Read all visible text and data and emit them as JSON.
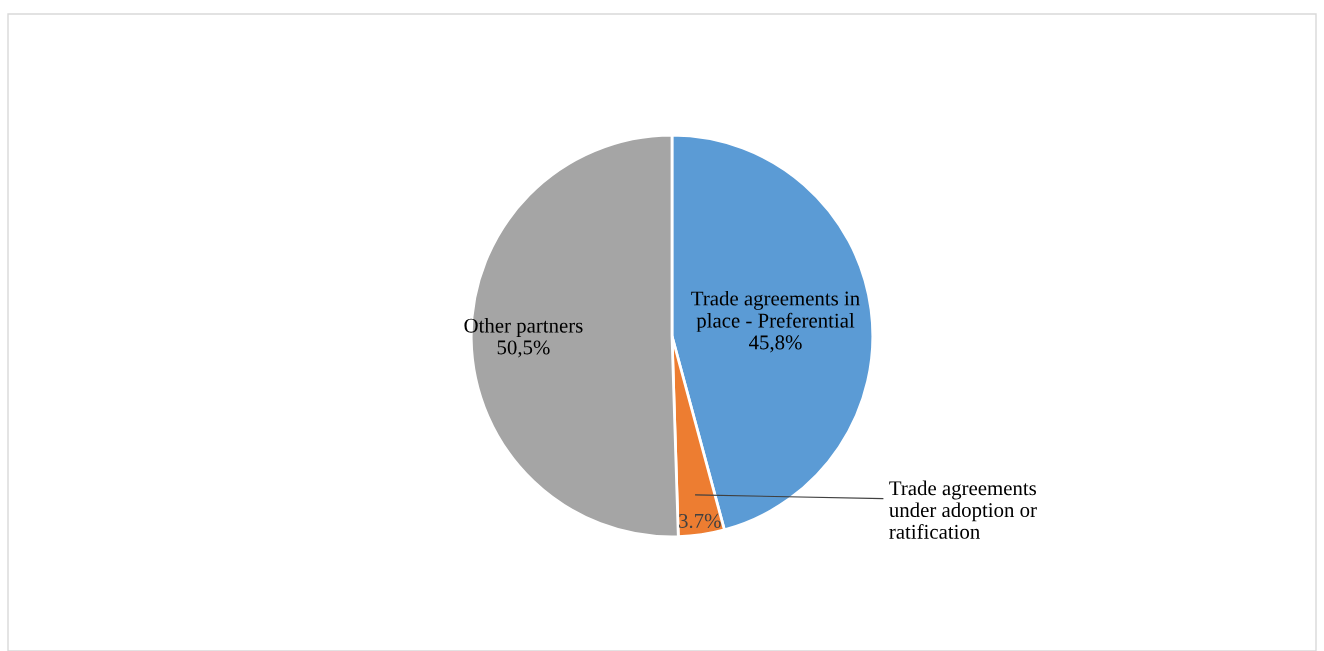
{
  "chart_data": {
    "type": "pie",
    "categories": [
      "Trade agreements in\nplace - Preferential",
      "Trade agreements\nunder adoption or\nratification",
      "Other partners"
    ],
    "values": [
      45.8,
      3.7,
      50.5
    ],
    "value_labels": [
      "45,8%",
      "3.7%",
      "50,5%"
    ],
    "colors": [
      "#5b9bd5",
      "#ed7d31",
      "#a5a5a5"
    ],
    "legend": false
  }
}
